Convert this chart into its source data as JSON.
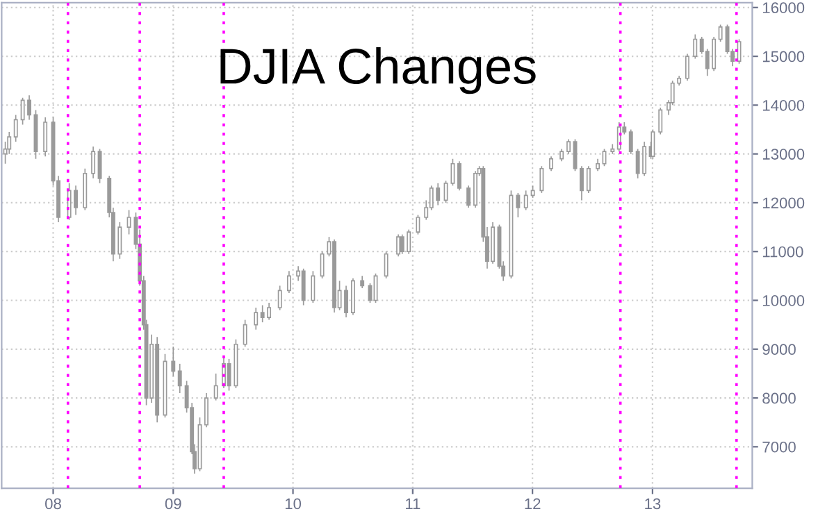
{
  "chart_data": {
    "type": "candlestick",
    "title": "DJIA Changes",
    "x": [
      "2007-08-08",
      "2007-08-20",
      "2007-09-09",
      "2007-09-30",
      "2007-10-20",
      "2007-11-09",
      "2007-12-08",
      "2008-01-01",
      "2008-01-17",
      "2008-02-19",
      "2008-03-10",
      "2008-04-07",
      "2008-05-02",
      "2008-05-22",
      "2008-06-20",
      "2008-07-02",
      "2008-07-22",
      "2008-08-19",
      "2008-09-09",
      "2008-09-21",
      "2008-10-03",
      "2008-10-11",
      "2008-10-27",
      "2008-11-13",
      "2008-12-07",
      "2009-01-01",
      "2009-01-21",
      "2009-02-11",
      "2009-02-27",
      "2009-03-07",
      "2009-03-23",
      "2009-04-12",
      "2009-05-11",
      "2009-06-04",
      "2009-06-20",
      "2009-07-11",
      "2009-08-08",
      "2009-09-10",
      "2009-09-30",
      "2009-10-20",
      "2009-11-22",
      "2009-12-20",
      "2010-01-17",
      "2010-02-02",
      "2010-03-03",
      "2010-03-31",
      "2010-04-21",
      "2010-05-07",
      "2010-05-23",
      "2010-06-12",
      "2010-07-03",
      "2010-07-31",
      "2010-08-24",
      "2010-09-10",
      "2010-10-12",
      "2010-11-18",
      "2010-11-30",
      "2010-12-20",
      "2011-01-17",
      "2011-02-11",
      "2011-02-27",
      "2011-03-19",
      "2011-04-12",
      "2011-05-03",
      "2011-05-23",
      "2011-06-20",
      "2011-07-11",
      "2011-07-23",
      "2011-08-04",
      "2011-08-16",
      "2011-09-02",
      "2011-09-22",
      "2011-10-04",
      "2011-10-28",
      "2011-11-18",
      "2011-12-12",
      "2012-01-02",
      "2012-01-29",
      "2012-02-27",
      "2012-03-30",
      "2012-04-20",
      "2012-05-10",
      "2012-05-30",
      "2012-06-20",
      "2012-07-18",
      "2012-08-07",
      "2012-09-01",
      "2012-09-21",
      "2012-10-07",
      "2012-10-27",
      "2012-11-17",
      "2012-12-07",
      "2012-12-27",
      "2013-01-02",
      "2013-01-25",
      "2013-02-19",
      "2013-03-03",
      "2013-03-23",
      "2013-04-17",
      "2013-05-11",
      "2013-05-31",
      "2013-06-17",
      "2013-07-07",
      "2013-07-27",
      "2013-08-17",
      "2013-09-02",
      "2013-09-22"
    ],
    "ohlc": [
      [
        13000,
        13250,
        12800,
        13100
      ],
      [
        13100,
        13450,
        13000,
        13350
      ],
      [
        13350,
        13800,
        13250,
        13700
      ],
      [
        13700,
        14150,
        13600,
        14100
      ],
      [
        14100,
        14200,
        13700,
        13800
      ],
      [
        13800,
        13900,
        12900,
        13050
      ],
      [
        13050,
        13750,
        12950,
        13650
      ],
      [
        13650,
        13750,
        12350,
        12450
      ],
      [
        12450,
        12550,
        11600,
        11700
      ],
      [
        11700,
        12400,
        11650,
        12250
      ],
      [
        12250,
        12350,
        11750,
        11900
      ],
      [
        11900,
        12700,
        11850,
        12600
      ],
      [
        12600,
        13150,
        12500,
        13050
      ],
      [
        13050,
        13100,
        12400,
        12500
      ],
      [
        12500,
        12550,
        11700,
        11800
      ],
      [
        11800,
        11900,
        10800,
        10950
      ],
      [
        10950,
        11600,
        10850,
        11500
      ],
      [
        11500,
        11850,
        11350,
        11700
      ],
      [
        11700,
        11800,
        11050,
        11150
      ],
      [
        11150,
        11450,
        10300,
        10400
      ],
      [
        10400,
        10500,
        9400,
        9500
      ],
      [
        9500,
        9600,
        7850,
        8000
      ],
      [
        8000,
        9300,
        7900,
        9100
      ],
      [
        9100,
        9250,
        7500,
        7650
      ],
      [
        7650,
        8900,
        7600,
        8750
      ],
      [
        8750,
        9050,
        8450,
        8550
      ],
      [
        8550,
        8700,
        8100,
        8250
      ],
      [
        8250,
        8350,
        7700,
        7800
      ],
      [
        7800,
        7900,
        6850,
        6900
      ],
      [
        6900,
        7050,
        6450,
        6550
      ],
      [
        6550,
        7600,
        6500,
        7450
      ],
      [
        7450,
        8100,
        7400,
        8000
      ],
      [
        8000,
        8500,
        7950,
        8250
      ],
      [
        8250,
        8850,
        8200,
        8700
      ],
      [
        8700,
        8800,
        8150,
        8250
      ],
      [
        8250,
        9200,
        8200,
        9100
      ],
      [
        9100,
        9600,
        9050,
        9500
      ],
      [
        9500,
        9850,
        9400,
        9750
      ],
      [
        9750,
        9900,
        9550,
        9650
      ],
      [
        9650,
        9950,
        9600,
        9850
      ],
      [
        9850,
        10300,
        9800,
        10200
      ],
      [
        10200,
        10600,
        10150,
        10500
      ],
      [
        10500,
        10700,
        10400,
        10600
      ],
      [
        10600,
        10650,
        9900,
        10000
      ],
      [
        10000,
        10600,
        9950,
        10500
      ],
      [
        10500,
        11000,
        10450,
        10950
      ],
      [
        10950,
        11300,
        10900,
        11200
      ],
      [
        11200,
        11250,
        9750,
        9850
      ],
      [
        9850,
        10400,
        9800,
        10200
      ],
      [
        10200,
        10300,
        9650,
        9750
      ],
      [
        9750,
        10450,
        9700,
        10400
      ],
      [
        10400,
        10500,
        10250,
        10300
      ],
      [
        10300,
        10350,
        9950,
        10000
      ],
      [
        10000,
        10550,
        9950,
        10500
      ],
      [
        10500,
        11000,
        10450,
        10950
      ],
      [
        10950,
        11350,
        10900,
        11300
      ],
      [
        11300,
        11350,
        10950,
        11000
      ],
      [
        11000,
        11450,
        10950,
        11400
      ],
      [
        11400,
        11750,
        11350,
        11700
      ],
      [
        11700,
        12050,
        11650,
        11900
      ],
      [
        11900,
        12350,
        11850,
        12300
      ],
      [
        12300,
        12400,
        11950,
        12050
      ],
      [
        12050,
        12450,
        12000,
        12400
      ],
      [
        12400,
        12900,
        12350,
        12800
      ],
      [
        12800,
        12850,
        12250,
        12300
      ],
      [
        12300,
        12350,
        11900,
        11950
      ],
      [
        11950,
        12650,
        11900,
        12600
      ],
      [
        12600,
        12750,
        12550,
        12700
      ],
      [
        12700,
        12750,
        11200,
        11300
      ],
      [
        11300,
        11500,
        10650,
        10800
      ],
      [
        10800,
        11600,
        10750,
        11500
      ],
      [
        11500,
        11550,
        10650,
        10700
      ],
      [
        10700,
        10800,
        10400,
        10500
      ],
      [
        10500,
        12250,
        10450,
        12150
      ],
      [
        12150,
        12200,
        11700,
        11900
      ],
      [
        11900,
        12250,
        11850,
        12150
      ],
      [
        12150,
        12350,
        12100,
        12250
      ],
      [
        12250,
        12750,
        12200,
        12700
      ],
      [
        12700,
        12950,
        12650,
        12900
      ],
      [
        12900,
        13100,
        12850,
        13050
      ],
      [
        13050,
        13300,
        13000,
        13250
      ],
      [
        13250,
        13300,
        12650,
        12700
      ],
      [
        12700,
        12750,
        12050,
        12250
      ],
      [
        12250,
        12750,
        12200,
        12700
      ],
      [
        12700,
        12900,
        12650,
        12800
      ],
      [
        12800,
        13100,
        12750,
        13050
      ],
      [
        13050,
        13200,
        13000,
        13100
      ],
      [
        13100,
        13650,
        13050,
        13550
      ],
      [
        13550,
        13650,
        13400,
        13450
      ],
      [
        13450,
        13500,
        13000,
        13050
      ],
      [
        13050,
        13100,
        12500,
        12600
      ],
      [
        12600,
        13250,
        12550,
        13150
      ],
      [
        13150,
        13250,
        12900,
        12950
      ],
      [
        12950,
        13500,
        12900,
        13450
      ],
      [
        13450,
        13950,
        13400,
        13900
      ],
      [
        13900,
        14100,
        13800,
        14050
      ],
      [
        14050,
        14500,
        14000,
        14450
      ],
      [
        14450,
        14600,
        14400,
        14550
      ],
      [
        14550,
        15050,
        14500,
        15000
      ],
      [
        15000,
        15450,
        14950,
        15350
      ],
      [
        15350,
        15400,
        15050,
        15100
      ],
      [
        15100,
        15150,
        14600,
        14750
      ],
      [
        14750,
        15400,
        14700,
        15350
      ],
      [
        15350,
        15650,
        15300,
        15600
      ],
      [
        15600,
        15650,
        15050,
        15100
      ],
      [
        15100,
        15150,
        14800,
        14900
      ],
      [
        14900,
        15350,
        14850,
        15300
      ]
    ],
    "color": "#9a9a9a",
    "xlim": [
      "2007-07-28",
      "2013-11-01"
    ],
    "xticks": [
      {
        "value": "2008-01-01",
        "label": "08"
      },
      {
        "value": "2009-01-01",
        "label": "09"
      },
      {
        "value": "2010-01-01",
        "label": "10"
      },
      {
        "value": "2011-01-01",
        "label": "11"
      },
      {
        "value": "2012-01-01",
        "label": "12"
      },
      {
        "value": "2013-01-01",
        "label": "13"
      }
    ],
    "ylim": [
      6150,
      16100
    ],
    "yticks": [
      7000,
      8000,
      9000,
      10000,
      11000,
      12000,
      13000,
      14000,
      15000,
      16000
    ],
    "grid": true,
    "ref_lines": [
      {
        "axis": "x",
        "value": "2008-02-15",
        "color": "#ff00ff",
        "line_style": "dotted"
      },
      {
        "axis": "x",
        "value": "2008-09-21",
        "color": "#ff00ff",
        "line_style": "dotted"
      },
      {
        "axis": "x",
        "value": "2009-06-04",
        "color": "#ff00ff",
        "line_style": "dotted"
      },
      {
        "axis": "x",
        "value": "2012-09-25",
        "color": "#ff00ff",
        "line_style": "dotted"
      },
      {
        "axis": "x",
        "value": "2013-09-14",
        "color": "#ff00ff",
        "line_style": "dotted"
      }
    ]
  }
}
